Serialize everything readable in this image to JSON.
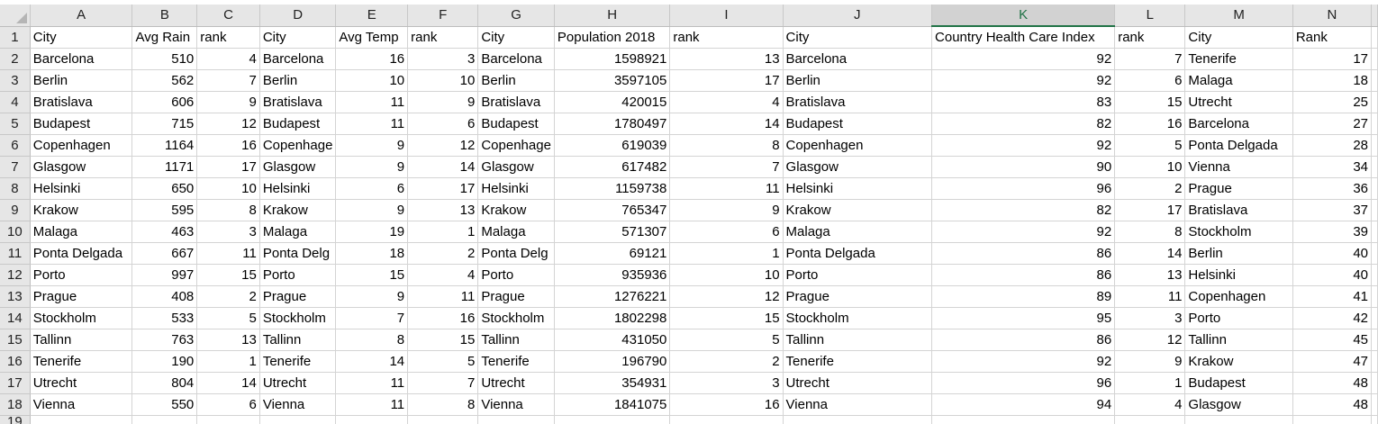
{
  "columns": [
    "A",
    "B",
    "C",
    "D",
    "E",
    "F",
    "G",
    "H",
    "I",
    "J",
    "K",
    "L",
    "M",
    "N"
  ],
  "selected_column": "K",
  "align": [
    "txt",
    "num",
    "num",
    "txt",
    "num",
    "num",
    "txt",
    "num",
    "num",
    "txt",
    "num",
    "num",
    "txt",
    "num"
  ],
  "header_row": {
    "number": "1",
    "cells": [
      "City",
      "Avg Rain",
      "rank",
      "City",
      "Avg Temp",
      "rank",
      "City",
      "Population 2018",
      "rank",
      "City",
      "Country Health Care Index",
      "rank",
      "City",
      "Rank"
    ]
  },
  "rows": [
    {
      "number": "2",
      "cells": [
        "Barcelona",
        "510",
        "4",
        "Barcelona",
        "16",
        "3",
        "Barcelona",
        "1598921",
        "13",
        "Barcelona",
        "92",
        "7",
        "Tenerife",
        "17"
      ]
    },
    {
      "number": "3",
      "cells": [
        "Berlin",
        "562",
        "7",
        "Berlin",
        "10",
        "10",
        "Berlin",
        "3597105",
        "17",
        "Berlin",
        "92",
        "6",
        "Malaga",
        "18"
      ]
    },
    {
      "number": "4",
      "cells": [
        "Bratislava",
        "606",
        "9",
        "Bratislava",
        "11",
        "9",
        "Bratislava",
        "420015",
        "4",
        "Bratislava",
        "83",
        "15",
        "Utrecht",
        "25"
      ]
    },
    {
      "number": "5",
      "cells": [
        "Budapest",
        "715",
        "12",
        "Budapest",
        "11",
        "6",
        "Budapest",
        "1780497",
        "14",
        "Budapest",
        "82",
        "16",
        "Barcelona",
        "27"
      ]
    },
    {
      "number": "6",
      "cells": [
        "Copenhagen",
        "1164",
        "16",
        "Copenhage",
        "9",
        "12",
        "Copenhage",
        "619039",
        "8",
        "Copenhagen",
        "92",
        "5",
        "Ponta Delgada",
        "28"
      ]
    },
    {
      "number": "7",
      "cells": [
        "Glasgow",
        "1171",
        "17",
        "Glasgow",
        "9",
        "14",
        "Glasgow",
        "617482",
        "7",
        "Glasgow",
        "90",
        "10",
        "Vienna",
        "34"
      ]
    },
    {
      "number": "8",
      "cells": [
        "Helsinki",
        "650",
        "10",
        "Helsinki",
        "6",
        "17",
        "Helsinki",
        "1159738",
        "11",
        "Helsinki",
        "96",
        "2",
        "Prague",
        "36"
      ]
    },
    {
      "number": "9",
      "cells": [
        "Krakow",
        "595",
        "8",
        "Krakow",
        "9",
        "13",
        "Krakow",
        "765347",
        "9",
        "Krakow",
        "82",
        "17",
        "Bratislava",
        "37"
      ]
    },
    {
      "number": "10",
      "cells": [
        "Malaga",
        "463",
        "3",
        "Malaga",
        "19",
        "1",
        "Malaga",
        "571307",
        "6",
        "Malaga",
        "92",
        "8",
        "Stockholm",
        "39"
      ]
    },
    {
      "number": "11",
      "cells": [
        "Ponta Delgada",
        "667",
        "11",
        "Ponta Delg",
        "18",
        "2",
        "Ponta Delg",
        "69121",
        "1",
        "Ponta Delgada",
        "86",
        "14",
        "Berlin",
        "40"
      ]
    },
    {
      "number": "12",
      "cells": [
        "Porto",
        "997",
        "15",
        "Porto",
        "15",
        "4",
        "Porto",
        "935936",
        "10",
        "Porto",
        "86",
        "13",
        "Helsinki",
        "40"
      ]
    },
    {
      "number": "13",
      "cells": [
        "Prague",
        "408",
        "2",
        "Prague",
        "9",
        "11",
        "Prague",
        "1276221",
        "12",
        "Prague",
        "89",
        "11",
        "Copenhagen",
        "41"
      ]
    },
    {
      "number": "14",
      "cells": [
        "Stockholm",
        "533",
        "5",
        "Stockholm",
        "7",
        "16",
        "Stockholm",
        "1802298",
        "15",
        "Stockholm",
        "95",
        "3",
        "Porto",
        "42"
      ]
    },
    {
      "number": "15",
      "cells": [
        "Tallinn",
        "763",
        "13",
        "Tallinn",
        "8",
        "15",
        "Tallinn",
        "431050",
        "5",
        "Tallinn",
        "86",
        "12",
        "Tallinn",
        "45"
      ]
    },
    {
      "number": "16",
      "cells": [
        "Tenerife",
        "190",
        "1",
        "Tenerife",
        "14",
        "5",
        "Tenerife",
        "196790",
        "2",
        "Tenerife",
        "92",
        "9",
        "Krakow",
        "47"
      ]
    },
    {
      "number": "17",
      "cells": [
        "Utrecht",
        "804",
        "14",
        "Utrecht",
        "11",
        "7",
        "Utrecht",
        "354931",
        "3",
        "Utrecht",
        "96",
        "1",
        "Budapest",
        "48"
      ]
    },
    {
      "number": "18",
      "cells": [
        "Vienna",
        "550",
        "6",
        "Vienna",
        "11",
        "8",
        "Vienna",
        "1841075",
        "16",
        "Vienna",
        "94",
        "4",
        "Glasgow",
        "48"
      ]
    }
  ],
  "partial_row_number": "19"
}
